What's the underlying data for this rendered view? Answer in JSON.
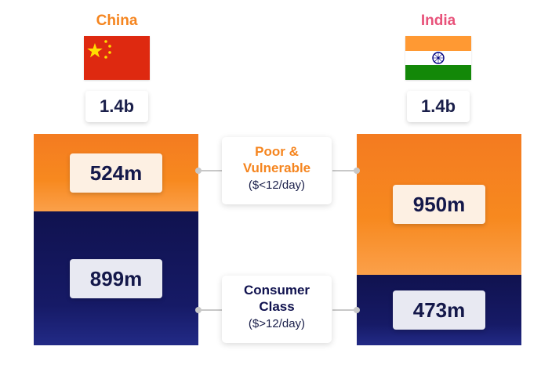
{
  "countries": {
    "china": {
      "name": "China",
      "name_color": "#f5851f",
      "population": "1.4b"
    },
    "india": {
      "name": "India",
      "name_color": "#e8527a",
      "population": "1.4b"
    }
  },
  "categories": {
    "poor": {
      "title_lines": [
        "Poor &",
        "Vulnerable"
      ],
      "threshold": "($<12/day)",
      "color": "#f7891f",
      "title_color": "#f5851f"
    },
    "consumer": {
      "title_lines": [
        "Consumer",
        "Class"
      ],
      "threshold": "($>12/day)",
      "color": "#10124f",
      "title_color": "#10124f"
    }
  },
  "chart_data": {
    "type": "bar",
    "stacked": true,
    "categories": [
      "China",
      "India"
    ],
    "series": [
      {
        "name": "Poor & Vulnerable ($<12/day)",
        "values": [
          524,
          950
        ],
        "labels": [
          "524m",
          "950m"
        ],
        "color": "#f7891f"
      },
      {
        "name": "Consumer Class ($>12/day)",
        "values": [
          899,
          473
        ],
        "labels": [
          "899m",
          "473m"
        ],
        "color": "#10124f"
      }
    ],
    "totals": [
      "1.4b",
      "1.4b"
    ],
    "unit": "m"
  }
}
